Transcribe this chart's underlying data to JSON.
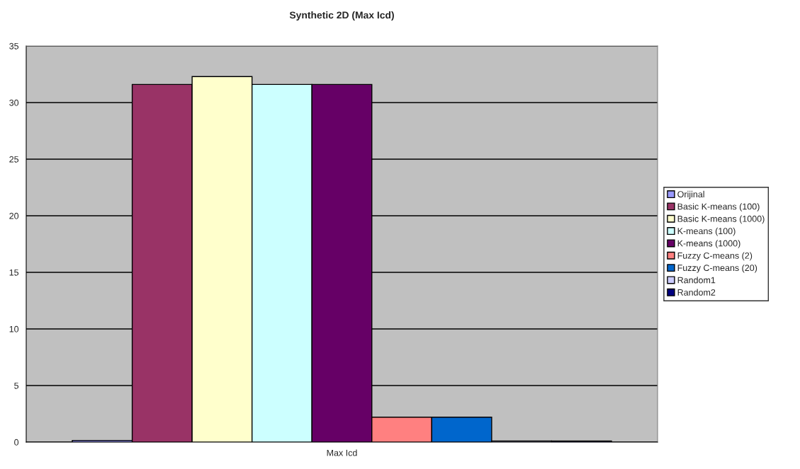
{
  "chart_data": {
    "type": "bar",
    "title": "Synthetic 2D (Max Icd)",
    "categories": [
      "Max Icd"
    ],
    "series": [
      {
        "name": "Orijinal",
        "color": "#9999ff",
        "values": [
          0.15
        ]
      },
      {
        "name": "Basic K-means (100)",
        "color": "#993366",
        "values": [
          31.6
        ]
      },
      {
        "name": "Basic K-means (1000)",
        "color": "#ffffcc",
        "values": [
          32.3
        ]
      },
      {
        "name": "K-means (100)",
        "color": "#ccffff",
        "values": [
          31.6
        ]
      },
      {
        "name": "K-means (1000)",
        "color": "#660066",
        "values": [
          31.6
        ]
      },
      {
        "name": "Fuzzy C-means (2)",
        "color": "#ff8080",
        "values": [
          2.2
        ]
      },
      {
        "name": "Fuzzy C-means (20)",
        "color": "#0066cc",
        "values": [
          2.2
        ]
      },
      {
        "name": "Random1",
        "color": "#ccccff",
        "values": [
          0.1
        ]
      },
      {
        "name": "Random2",
        "color": "#000080",
        "values": [
          0.1
        ]
      }
    ],
    "ylim": [
      0,
      35
    ],
    "yticks": [
      0,
      5,
      10,
      15,
      20,
      25,
      30,
      35
    ],
    "grid": "y",
    "legend": "right"
  }
}
